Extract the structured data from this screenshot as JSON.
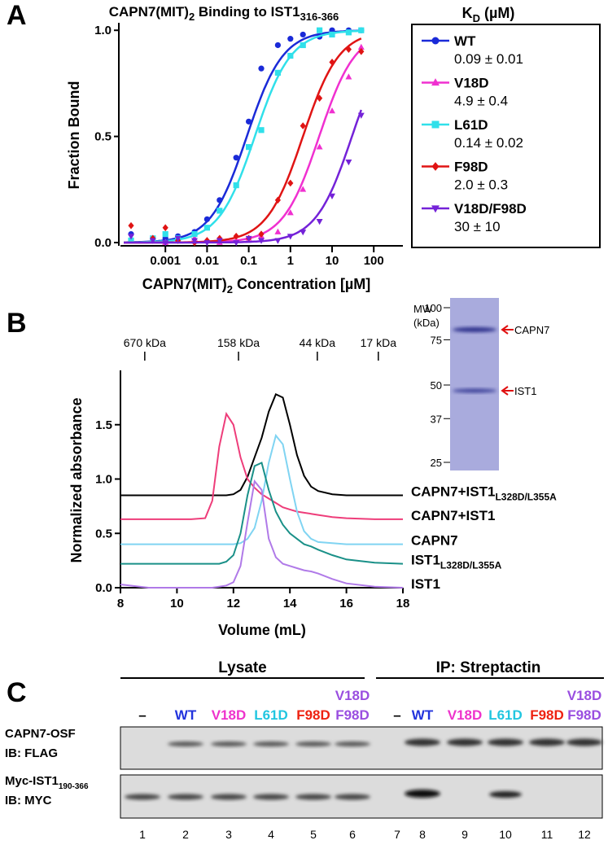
{
  "chart_data": [
    {
      "type": "scatter",
      "panel": "A",
      "title": [
        "CAPN7(MIT)",
        "2",
        " Binding to IST1",
        "316-366"
      ],
      "x_label": [
        "CAPN7(MIT)",
        "2",
        " Concentration [µM]"
      ],
      "y_label": "Fraction Bound",
      "x_scale": "log",
      "xlim": [
        0.0001,
        500
      ],
      "xticks": [
        0.001,
        0.01,
        0.1,
        1,
        10,
        100
      ],
      "ylim": [
        0,
        1.02
      ],
      "yticks": [
        {
          "value": 0,
          "label": "0.0"
        },
        0.5,
        {
          "value": 1,
          "label": "1.0"
        }
      ],
      "legend_title": [
        "K",
        "D",
        " (µM)"
      ],
      "legend": "right",
      "x": [
        0.00015,
        0.0005,
        0.001,
        0.002,
        0.005,
        0.01,
        0.02,
        0.05,
        0.1,
        0.2,
        0.5,
        1,
        2,
        5,
        10,
        25,
        50
      ],
      "series": [
        {
          "name": "WT",
          "color": "#1a2ad8",
          "marker": "circle",
          "kd": 0.09,
          "kd_label": "0.09 ± 0.01",
          "values": [
            0.04,
            0.01,
            0.02,
            0.03,
            0.05,
            0.11,
            0.2,
            0.4,
            0.57,
            0.82,
            0.93,
            0.96,
            0.98,
            0.97,
            1.0,
            1.0,
            1.0
          ]
        },
        {
          "name": "V18D",
          "color": "#f030d0",
          "marker": "triangle",
          "kd": 4.9,
          "kd_label": "4.9 ± 0.4",
          "values": [
            0.01,
            0.02,
            0.0,
            0.01,
            0.02,
            0.01,
            0.0,
            0.01,
            0.02,
            0.03,
            0.05,
            0.14,
            0.25,
            0.45,
            0.62,
            0.78,
            0.92
          ]
        },
        {
          "name": "L61D",
          "color": "#30e0ea",
          "marker": "square",
          "kd": 0.14,
          "kd_label": "0.14 ± 0.02",
          "values": [
            0.01,
            0.02,
            0.04,
            0.02,
            0.04,
            0.07,
            0.15,
            0.27,
            0.45,
            0.53,
            0.8,
            0.88,
            0.93,
            1.0,
            0.98,
            0.99,
            1.0
          ]
        },
        {
          "name": "F98D",
          "color": "#e01414",
          "marker": "diamond",
          "kd": 2.0,
          "kd_label": "2.0 ± 0.3",
          "values": [
            0.08,
            0.02,
            0.07,
            0.01,
            0.0,
            0.01,
            0.02,
            0.03,
            0.02,
            0.04,
            0.2,
            0.28,
            0.55,
            0.68,
            0.85,
            0.91,
            0.9
          ]
        },
        {
          "name": "V18D/F98D",
          "color": "#7422d8",
          "marker": "triangle-down",
          "kd": 30,
          "kd_label": "30 ± 10",
          "values": [
            0.03,
            0.01,
            0.0,
            0.02,
            0.01,
            0.0,
            0.01,
            0.0,
            0.02,
            0.01,
            0.01,
            0.03,
            0.05,
            0.1,
            0.22,
            0.38,
            0.6
          ]
        }
      ]
    },
    {
      "type": "line",
      "panel": "B",
      "x_label": "Volume (mL)",
      "y_label": "Normalized absorbance",
      "xlim": [
        8,
        18
      ],
      "xticks": [
        8,
        10,
        12,
        14,
        16,
        18
      ],
      "ylim": [
        0,
        2.0
      ],
      "yticks": [
        {
          "value": 0,
          "label": "0.0"
        },
        0.5,
        {
          "value": 1,
          "label": "1.0"
        },
        1.5
      ],
      "markers": [
        {
          "x": 8.86,
          "label": "670 kDa"
        },
        {
          "x": 12.18,
          "label": "158 kDa"
        },
        {
          "x": 14.97,
          "label": "44 kDa"
        },
        {
          "x": 17.13,
          "label": "17 kDa"
        }
      ],
      "x": [
        8,
        9,
        10,
        10.5,
        11,
        11.25,
        11.5,
        11.75,
        12,
        12.25,
        12.5,
        12.75,
        13,
        13.25,
        13.5,
        13.75,
        14,
        14.25,
        14.5,
        14.75,
        15,
        15.5,
        16,
        17,
        18
      ],
      "series": [
        {
          "name": "CAPN7+IST1",
          "name_sub": "L328D/L355A",
          "color": "#000000",
          "values": [
            0.85,
            0.85,
            0.85,
            0.85,
            0.85,
            0.85,
            0.85,
            0.85,
            0.86,
            0.9,
            1.02,
            1.2,
            1.38,
            1.62,
            1.78,
            1.75,
            1.5,
            1.22,
            1.03,
            0.93,
            0.89,
            0.86,
            0.85,
            0.85,
            0.85
          ]
        },
        {
          "name": "CAPN7+IST1",
          "color": "#ee3d7a",
          "values": [
            0.63,
            0.63,
            0.63,
            0.63,
            0.64,
            0.8,
            1.3,
            1.6,
            1.5,
            1.2,
            1.0,
            0.92,
            0.86,
            0.82,
            0.78,
            0.74,
            0.72,
            0.7,
            0.69,
            0.68,
            0.67,
            0.65,
            0.64,
            0.63,
            0.63
          ]
        },
        {
          "name": "CAPN7",
          "color": "#80d4f2",
          "values": [
            0.4,
            0.4,
            0.4,
            0.4,
            0.4,
            0.4,
            0.4,
            0.4,
            0.4,
            0.41,
            0.45,
            0.55,
            0.8,
            1.15,
            1.4,
            1.32,
            1.0,
            0.7,
            0.52,
            0.45,
            0.42,
            0.41,
            0.4,
            0.4,
            0.4
          ]
        },
        {
          "name": "IST1",
          "name_sub": "L328D/L355A",
          "color": "#1a9088",
          "values": [
            0.22,
            0.22,
            0.22,
            0.22,
            0.22,
            0.22,
            0.22,
            0.24,
            0.3,
            0.5,
            0.85,
            1.12,
            1.15,
            0.9,
            0.7,
            0.58,
            0.5,
            0.45,
            0.4,
            0.38,
            0.35,
            0.3,
            0.26,
            0.23,
            0.22
          ]
        },
        {
          "name": "IST1",
          "color": "#b07ae8",
          "values": [
            0.03,
            0.0,
            0.0,
            0.0,
            0.0,
            0.0,
            0.01,
            0.02,
            0.05,
            0.2,
            0.6,
            0.98,
            0.9,
            0.45,
            0.28,
            0.22,
            0.2,
            0.18,
            0.16,
            0.15,
            0.13,
            0.08,
            0.04,
            0.01,
            0.0
          ]
        }
      ]
    }
  ],
  "gel": {
    "mw_label": [
      "MW",
      "(kDa)"
    ],
    "ladder": [
      100,
      75,
      50,
      37,
      25
    ],
    "bands": [
      "CAPN7",
      "IST1"
    ]
  },
  "blot": {
    "panel": "C",
    "groups": [
      "Lysate",
      "IP: Streptactin"
    ],
    "conditions": [
      {
        "lines": [
          "–"
        ],
        "color": "#000000"
      },
      {
        "lines": [
          "WT"
        ],
        "color": "#2233dd"
      },
      {
        "lines": [
          "V18D"
        ],
        "color": "#ee33cc"
      },
      {
        "lines": [
          "L61D"
        ],
        "color": "#22c6e0"
      },
      {
        "lines": [
          "F98D"
        ],
        "color": "#ee2211"
      },
      {
        "lines": [
          "V18D",
          "F98D"
        ],
        "color": "#9a4ee0"
      }
    ],
    "rows": [
      {
        "label": [
          "CAPN7-OSF"
        ],
        "probe": "IB: FLAG"
      },
      {
        "label": [
          "Myc-IST1",
          "190-366"
        ],
        "probe": "IB: MYC"
      }
    ],
    "lanes": [
      1,
      2,
      3,
      4,
      5,
      6,
      7,
      8,
      9,
      10,
      11,
      12
    ]
  }
}
